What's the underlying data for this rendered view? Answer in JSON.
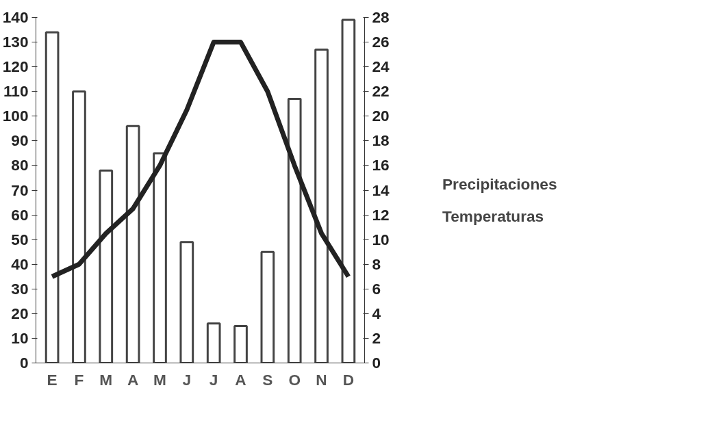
{
  "chart_data": {
    "type": "bar",
    "categories": [
      "E",
      "F",
      "M",
      "A",
      "M",
      "J",
      "J",
      "A",
      "S",
      "O",
      "N",
      "D"
    ],
    "series": [
      {
        "name": "Precipitaciones",
        "color": "#ffffff",
        "values": [
          134,
          110,
          78,
          96,
          85,
          49,
          16,
          15,
          45,
          107,
          127,
          139
        ]
      },
      {
        "name": "Temperaturas",
        "type": "line",
        "axis": "y2",
        "color": "#222222",
        "values": [
          7,
          8,
          10.5,
          12.5,
          16,
          20.5,
          26,
          26,
          22,
          16,
          10.5,
          7
        ]
      }
    ],
    "ylim": [
      0,
      140
    ],
    "yticks": [
      0,
      10,
      20,
      30,
      40,
      50,
      60,
      70,
      80,
      90,
      100,
      110,
      120,
      130,
      140
    ],
    "y2lim": [
      0,
      28
    ],
    "y2ticks": [
      0,
      2,
      4,
      6,
      8,
      10,
      12,
      14,
      16,
      18,
      20,
      22,
      24,
      26,
      28
    ],
    "legend": "right",
    "grid": false,
    "line_style": "solid",
    "marker": "none"
  }
}
